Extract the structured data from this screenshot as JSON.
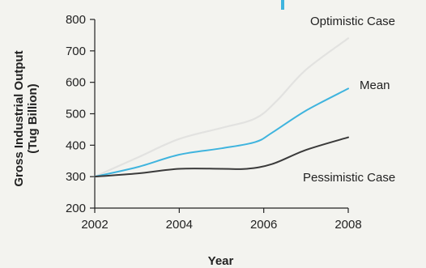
{
  "chart_data": {
    "type": "line",
    "title": "",
    "xlabel": "Year",
    "ylabel": "Gross Industrial Output (Tug Billion)",
    "ylabel_lines": [
      "Gross Industrial Output",
      "(Tug Billion)"
    ],
    "xlim": [
      2002,
      2008
    ],
    "ylim": [
      200,
      800
    ],
    "x_ticks": [
      2002,
      2004,
      2006,
      2008
    ],
    "y_ticks": [
      200,
      300,
      400,
      500,
      600,
      700,
      800
    ],
    "grid": false,
    "legend": "direct labels at line ends",
    "series": [
      {
        "name": "Optimistic Case",
        "color": "#e2e2e0",
        "x": [
          2002,
          2003,
          2004,
          2005,
          2005.8,
          2006.3,
          2007,
          2008
        ],
        "y": [
          300,
          360,
          420,
          455,
          485,
          540,
          640,
          740
        ]
      },
      {
        "name": "Mean",
        "color": "#3fb4de",
        "x": [
          2002,
          2003,
          2004,
          2005,
          2005.8,
          2006.2,
          2007,
          2008
        ],
        "y": [
          300,
          330,
          370,
          390,
          410,
          440,
          510,
          580
        ]
      },
      {
        "name": "Pessimistic Case",
        "color": "#3a3a3a",
        "x": [
          2002,
          2003,
          2004,
          2005,
          2005.6,
          2006.2,
          2007,
          2008
        ],
        "y": [
          300,
          310,
          325,
          325,
          325,
          340,
          385,
          425
        ]
      }
    ]
  }
}
